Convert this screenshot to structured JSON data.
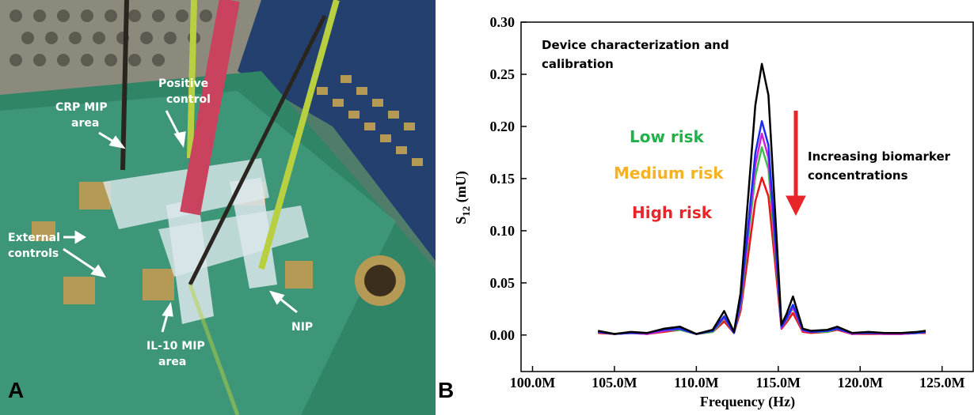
{
  "photo": {
    "panel_label": "A",
    "labels": [
      {
        "lines": [
          "Positive",
          "control"
        ]
      },
      {
        "lines": [
          "CRP MIP",
          "area"
        ]
      },
      {
        "lines": [
          "External",
          "controls"
        ]
      },
      {
        "lines": [
          "IL-10 MIP",
          "area"
        ]
      },
      {
        "lines": [
          "NIP"
        ]
      }
    ]
  },
  "chart_data": {
    "type": "line",
    "panel_label": "B",
    "x_label": "Frequency (Hz)",
    "y_label": {
      "main": "S",
      "sub": "12",
      "rest": " (mU)"
    },
    "x": [
      104000000,
      105000000,
      106000000,
      107000000,
      108000000,
      109000000,
      110000000,
      111000000,
      111700000,
      112300000,
      112700000,
      113200000,
      113600000,
      114000000,
      114400000,
      114800000,
      115200000,
      115500000,
      115900000,
      116500000,
      117000000,
      118000000,
      118600000,
      119500000,
      120500000,
      121500000,
      122500000,
      123500000,
      124000000
    ],
    "series": [
      {
        "color": "#e8151a",
        "values": [
          0.002,
          0.001,
          0.002,
          0.001,
          0.003,
          0.005,
          0.001,
          0.003,
          0.013,
          0.002,
          0.023,
          0.081,
          0.128,
          0.151,
          0.133,
          0.07,
          0.006,
          0.012,
          0.021,
          0.003,
          0.002,
          0.003,
          0.005,
          0.001,
          0.001,
          0.001,
          0.001,
          0.002,
          0.002
        ]
      },
      {
        "color": "#3cbf4c",
        "values": [
          0.003,
          0.001,
          0.002,
          0.001,
          0.004,
          0.005,
          0.001,
          0.003,
          0.016,
          0.002,
          0.028,
          0.097,
          0.152,
          0.18,
          0.159,
          0.083,
          0.007,
          0.014,
          0.026,
          0.004,
          0.003,
          0.003,
          0.006,
          0.001,
          0.002,
          0.001,
          0.001,
          0.002,
          0.003
        ]
      },
      {
        "color": "#d41fd8",
        "values": [
          0.003,
          0.001,
          0.002,
          0.001,
          0.004,
          0.006,
          0.001,
          0.004,
          0.017,
          0.002,
          0.03,
          0.104,
          0.163,
          0.193,
          0.17,
          0.089,
          0.007,
          0.015,
          0.027,
          0.004,
          0.003,
          0.004,
          0.006,
          0.001,
          0.002,
          0.001,
          0.001,
          0.002,
          0.003
        ]
      },
      {
        "color": "#1a2cf5",
        "values": [
          0.003,
          0.001,
          0.002,
          0.002,
          0.005,
          0.006,
          0.001,
          0.004,
          0.018,
          0.002,
          0.032,
          0.111,
          0.174,
          0.205,
          0.182,
          0.095,
          0.008,
          0.016,
          0.029,
          0.005,
          0.003,
          0.004,
          0.006,
          0.002,
          0.002,
          0.002,
          0.002,
          0.002,
          0.003
        ]
      },
      {
        "color": "#000000",
        "values": [
          0.004,
          0.001,
          0.003,
          0.002,
          0.006,
          0.008,
          0.001,
          0.005,
          0.023,
          0.003,
          0.04,
          0.14,
          0.22,
          0.26,
          0.23,
          0.12,
          0.01,
          0.02,
          0.037,
          0.006,
          0.004,
          0.005,
          0.008,
          0.002,
          0.003,
          0.002,
          0.002,
          0.003,
          0.004
        ]
      }
    ],
    "xlim": [
      99300000,
      126900000
    ],
    "xticks": [
      {
        "value": 100000000,
        "label": "100.0M"
      },
      {
        "value": 105000000,
        "label": "105.0M"
      },
      {
        "value": 110000000,
        "label": "110.0M"
      },
      {
        "value": 115000000,
        "label": "115.0M"
      },
      {
        "value": 120000000,
        "label": "120.0M"
      },
      {
        "value": 125000000,
        "label": "125.0M"
      }
    ],
    "ylim": [
      -0.035,
      0.3
    ],
    "yticks": [
      {
        "value": 0,
        "label": "0.00"
      },
      {
        "value": 0.05,
        "label": "0.05"
      },
      {
        "value": 0.1,
        "label": "0.10"
      },
      {
        "value": 0.15,
        "label": "0.15"
      },
      {
        "value": 0.2,
        "label": "0.20"
      },
      {
        "value": 0.25,
        "label": "0.25"
      },
      {
        "value": 0.3,
        "label": "0.30"
      }
    ],
    "grid": false,
    "annotations": [
      {
        "lines": [
          "Device characterization and",
          "calibration"
        ],
        "color": "#000000"
      },
      {
        "lines": [
          "Low risk"
        ],
        "color": "#22b04a"
      },
      {
        "lines": [
          "Medium risk"
        ],
        "color": "#f5b324"
      },
      {
        "lines": [
          "High risk"
        ],
        "color": "#e8262a"
      },
      {
        "lines": [
          "Increasing biomarker",
          "concentrations"
        ],
        "color": "#000000"
      }
    ]
  }
}
